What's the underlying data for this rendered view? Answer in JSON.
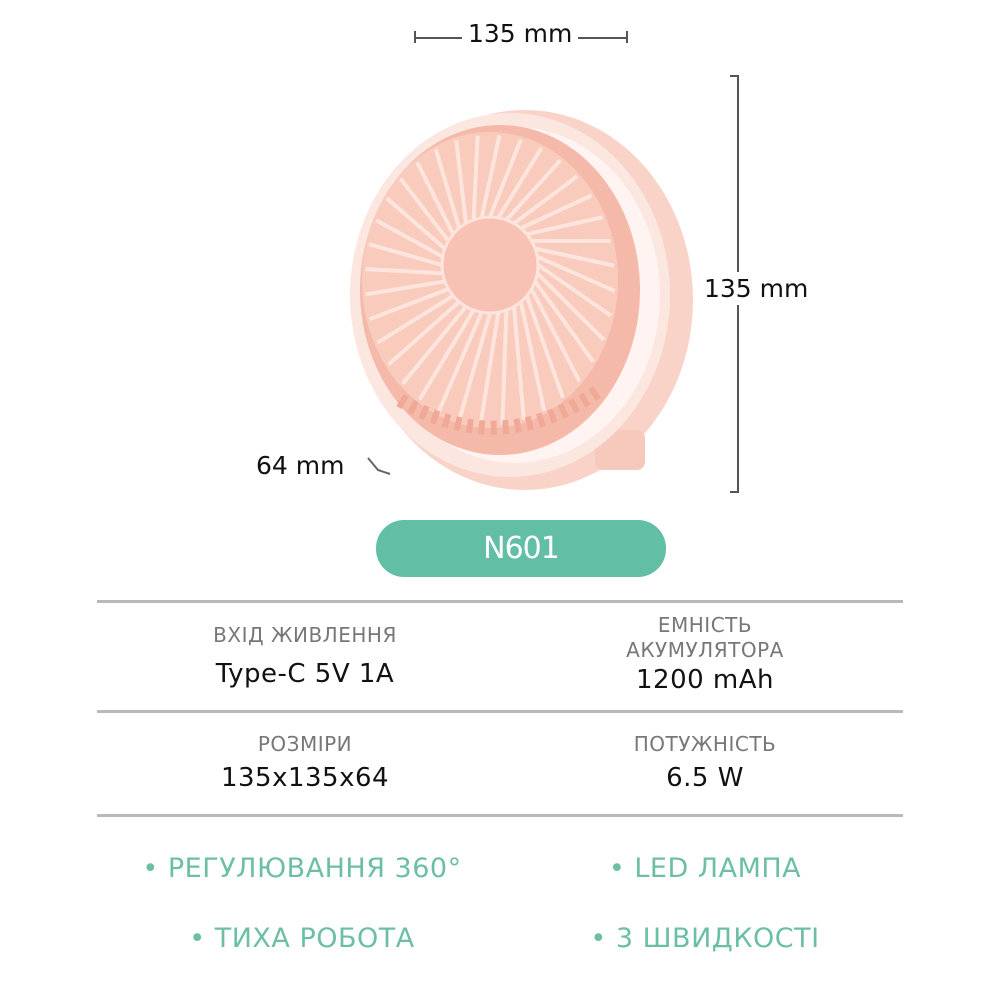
{
  "dimensions": {
    "width": "135 mm",
    "height": "135 mm",
    "depth": "64 mm"
  },
  "model": "N601",
  "specs": [
    {
      "label": "ВХІД ЖИВЛЕННЯ",
      "value": "Type-C 5V 1A"
    },
    {
      "label": "ЕМНІСТЬ АКУМУЛЯТОРА",
      "value": "1200 mAh"
    },
    {
      "label": "РОЗМІРИ",
      "value": "135x135x64"
    },
    {
      "label": "ПОТУЖНІСТЬ",
      "value": "6.5 W"
    }
  ],
  "features": [
    "• РЕГУЛЮВАННЯ 360°",
    "• LED  ЛАМПА",
    "• ТИХА РОБОТА",
    "• 3 ШВИДКОСТІ"
  ],
  "colors": {
    "accent": "#62bfa6",
    "feature_text": "#6cbfa5",
    "fan_pink": "#f7c9bd"
  }
}
